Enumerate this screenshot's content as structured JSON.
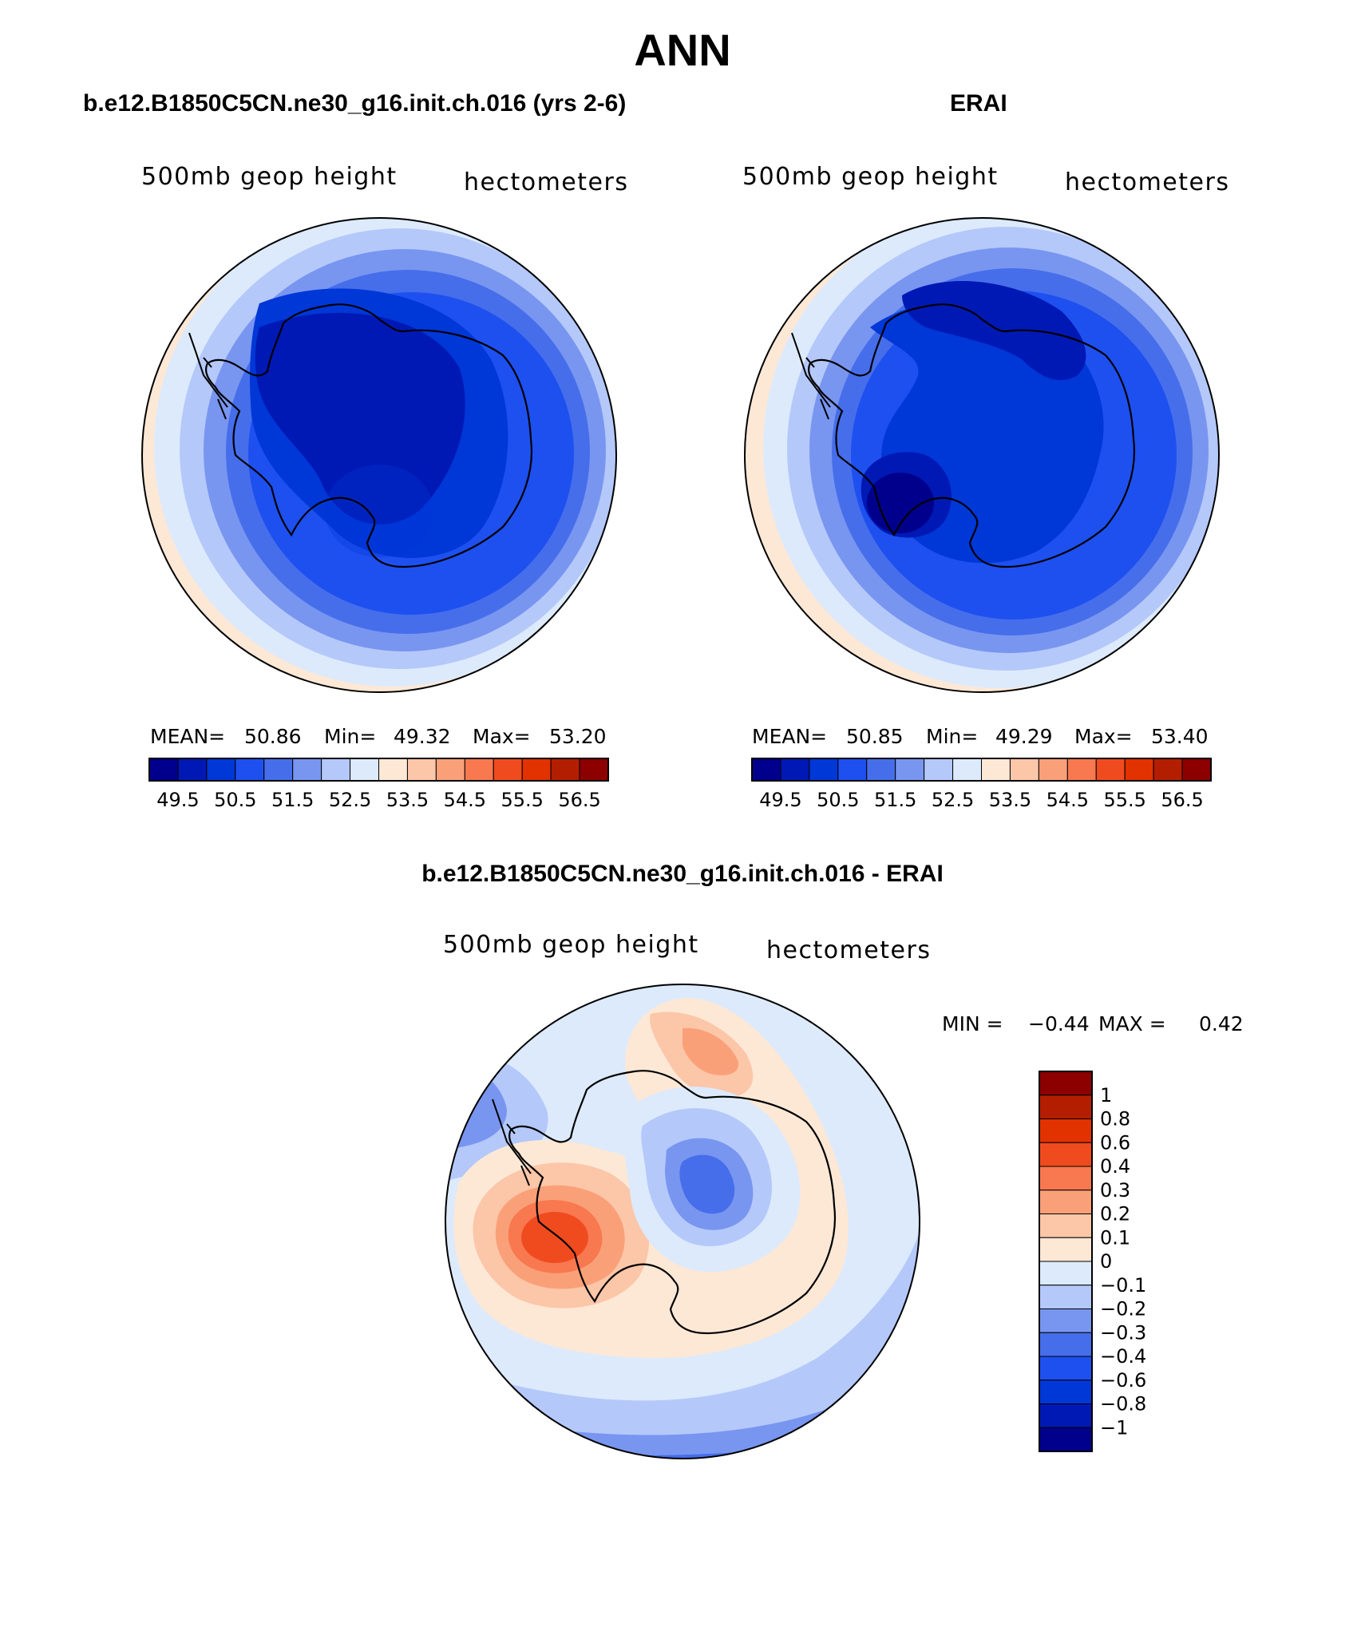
{
  "title": "ANN",
  "panels": {
    "model": {
      "title": "b.e12.B1850C5CN.ne30_g16.init.ch.016 (yrs 2-6)",
      "field_label": "500mb geop height",
      "units": "hectometers",
      "mean_label": "MEAN=",
      "mean": "50.86",
      "min_label": "Min=",
      "min": "49.32",
      "max_label": "Max=",
      "max": "53.20"
    },
    "obs": {
      "title": "ERAI",
      "field_label": "500mb geop height",
      "units": "hectometers",
      "mean_label": "MEAN=",
      "mean": "50.85",
      "min_label": "Min=",
      "min": "49.29",
      "max_label": "Max=",
      "max": "53.40"
    },
    "diff": {
      "title": "b.e12.B1850C5CN.ne30_g16.init.ch.016 - ERAI",
      "field_label": "500mb geop height",
      "units": "hectometers",
      "min_label": "MIN =",
      "min": "−0.44",
      "max_label": "MAX =",
      "max": "0.42"
    }
  },
  "colors": {
    "abs_scale": [
      "#00008c",
      "#0019b4",
      "#0037d7",
      "#1e50f0",
      "#466eeb",
      "#7896f0",
      "#b4c8fa",
      "#dceafc",
      "#fde8d6",
      "#fcc6a8",
      "#faa078",
      "#f87850",
      "#f04b1e",
      "#e13200",
      "#b41e00",
      "#8c0000"
    ],
    "diff_scale": [
      "#00008c",
      "#0019b4",
      "#0037d7",
      "#1e50f0",
      "#466eeb",
      "#7896f0",
      "#b4c8fa",
      "#dceafc",
      "#fde8d6",
      "#fcc6a8",
      "#faa078",
      "#f87850",
      "#f04b1e",
      "#e13200",
      "#b41e00",
      "#8c0000"
    ],
    "coastline": "#000000"
  },
  "chart_data": [
    {
      "type": "heatmap",
      "projection": "south-polar-stereographic",
      "title": "b.e12.B1850C5CN.ne30_g16.init.ch.016 (yrs 2-6)",
      "variable": "500mb geop height",
      "units": "hectometers",
      "stats": {
        "mean": 50.86,
        "min": 49.32,
        "max": 53.2
      },
      "contour_levels": [
        49.5,
        50.5,
        51.5,
        52.5,
        53.5,
        54.5,
        55.5,
        56.5
      ],
      "colorbar_labels": [
        "49.5",
        "50.5",
        "51.5",
        "52.5",
        "53.5",
        "54.5",
        "55.5",
        "56.5"
      ],
      "legend": "bottom-horizontal"
    },
    {
      "type": "heatmap",
      "projection": "south-polar-stereographic",
      "title": "ERAI",
      "variable": "500mb geop height",
      "units": "hectometers",
      "stats": {
        "mean": 50.85,
        "min": 49.29,
        "max": 53.4
      },
      "contour_levels": [
        49.5,
        50.5,
        51.5,
        52.5,
        53.5,
        54.5,
        55.5,
        56.5
      ],
      "colorbar_labels": [
        "49.5",
        "50.5",
        "51.5",
        "52.5",
        "53.5",
        "54.5",
        "55.5",
        "56.5"
      ],
      "legend": "bottom-horizontal"
    },
    {
      "type": "heatmap",
      "projection": "south-polar-stereographic",
      "title": "b.e12.B1850C5CN.ne30_g16.init.ch.016 - ERAI",
      "variable": "500mb geop height",
      "units": "hectometers",
      "stats": {
        "min": -0.44,
        "max": 0.42
      },
      "contour_levels": [
        1,
        0.8,
        0.6,
        0.4,
        0.3,
        0.2,
        0.1,
        0,
        -0.1,
        -0.2,
        -0.3,
        -0.4,
        -0.6,
        -0.8,
        -1
      ],
      "colorbar_labels": [
        "1",
        "0.8",
        "0.6",
        "0.4",
        "0.3",
        "0.2",
        "0.1",
        "0",
        "−0.1",
        "−0.2",
        "−0.3",
        "−0.4",
        "−0.6",
        "−0.8",
        "−1"
      ],
      "legend": "right-vertical"
    }
  ]
}
